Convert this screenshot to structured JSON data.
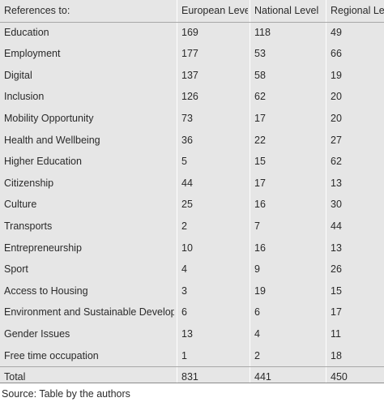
{
  "chart_data": {
    "type": "table",
    "columns": [
      "References to:",
      "European Level",
      "National Level",
      "Regional Level"
    ],
    "rows": [
      [
        "Education",
        "169",
        "118",
        "49"
      ],
      [
        "Employment",
        "177",
        "53",
        "66"
      ],
      [
        "Digital",
        "137",
        "58",
        "19"
      ],
      [
        "Inclusion",
        "126",
        "62",
        "20"
      ],
      [
        "Mobility Opportunity",
        "73",
        "17",
        "20"
      ],
      [
        "Health and Wellbeing",
        "36",
        "22",
        "27"
      ],
      [
        "Higher Education",
        "5",
        "15",
        "62"
      ],
      [
        "Citizenship",
        "44",
        "17",
        "13"
      ],
      [
        "Culture",
        "25",
        "16",
        "30"
      ],
      [
        "Transports",
        "2",
        "7",
        "44"
      ],
      [
        "Entrepreneurship",
        "10",
        "16",
        "13"
      ],
      [
        "Sport",
        "4",
        "9",
        "26"
      ],
      [
        "Access to Housing",
        "3",
        "19",
        "15"
      ],
      [
        "Environment and Sustainable Development",
        "6",
        "6",
        "17"
      ],
      [
        "Gender Issues",
        "13",
        "4",
        "11"
      ],
      [
        "Free time occupation",
        "1",
        "2",
        "18"
      ]
    ],
    "total": [
      "Total",
      "831",
      "441",
      "450"
    ]
  },
  "source": "Source: Table by the authors"
}
